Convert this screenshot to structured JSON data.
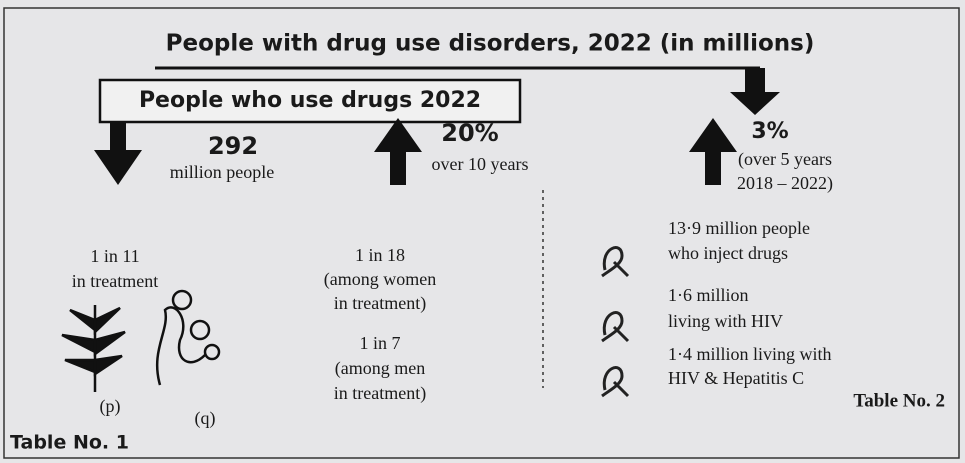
{
  "header": {
    "title": "People with drug use disorders, 2022 (in millions)"
  },
  "users": {
    "title": "People who use drugs 2022",
    "count": {
      "number": "292",
      "unit": "million people"
    },
    "growth": {
      "number": "20%",
      "period": "over 10 years"
    }
  },
  "disorders": {
    "growth": {
      "number": "3%",
      "period": [
        "(over 5 years",
        "2018 – 2022)"
      ]
    }
  },
  "treatment": {
    "overall": [
      "1 in 11",
      "in treatment"
    ],
    "women": [
      "1 in 18",
      "(among women",
      "in treatment)"
    ],
    "men": [
      "1 in 7",
      "(among men",
      "in treatment)"
    ]
  },
  "facts": [
    [
      "13·9 million people",
      "who inject drugs"
    ],
    [
      "1·6 million",
      "living with HIV"
    ],
    [
      "1·4 million living with",
      "HIV & Hepatitis C"
    ]
  ],
  "figures": [
    "(p)",
    "(q)"
  ],
  "tables": [
    "Table No. 1",
    "Table No. 2"
  ]
}
